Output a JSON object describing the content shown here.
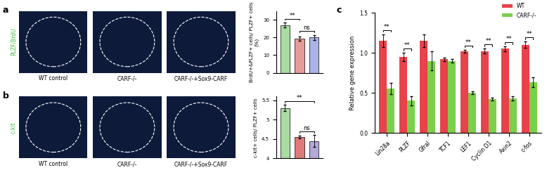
{
  "chart_data": [
    {
      "type": "bar",
      "categories": [
        null,
        null,
        null
      ],
      "values": [
        27,
        19.5,
        20
      ],
      "errors": [
        1.5,
        1.2,
        1.4
      ],
      "colors": [
        "#a8dca0",
        "#e89a9a",
        "#aab4e6"
      ],
      "ylabel": "BrdU+&PLZF+ cells/ PLZF+ cells (%)",
      "ylim": [
        0,
        35
      ],
      "yticks": [
        0,
        10,
        20,
        30
      ],
      "tick_labels": "y",
      "annotations": [
        {
          "text": "**",
          "between": [
            0,
            1
          ]
        },
        {
          "text": "ns",
          "between": [
            1,
            2
          ]
        }
      ]
    },
    {
      "type": "bar",
      "categories": [
        null,
        null,
        null
      ],
      "values": [
        5.3,
        4.55,
        4.45
      ],
      "errors": [
        0.08,
        0.03,
        0.15
      ],
      "colors": [
        "#a8dca0",
        "#e07a7a",
        "#b4a8d8"
      ],
      "ylabel": "c-kit+ cells/ PLZF+ cells",
      "ylim": [
        4,
        5.6
      ],
      "yticks": [
        4,
        4.5,
        5,
        5.5
      ],
      "tick_labels": "y",
      "annotations": [
        {
          "text": "**",
          "between": [
            0,
            2
          ]
        },
        {
          "text": "ns",
          "between": [
            1,
            2
          ]
        }
      ]
    },
    {
      "type": "bar",
      "categories": [
        "Lin28a",
        "PLZF",
        "Gfral",
        "TCF1",
        "LEF1",
        "Cyclin D1",
        "Axin2",
        "c-fos"
      ],
      "series": [
        {
          "name": "WT",
          "color": "#e8424a",
          "values": [
            1.15,
            0.95,
            1.15,
            0.92,
            1.02,
            1.02,
            1.05,
            1.1
          ],
          "errors": [
            0.08,
            0.05,
            0.08,
            0.02,
            0.02,
            0.03,
            0.03,
            0.04
          ]
        },
        {
          "name": "CARF-/-",
          "color": "#7ccf4a",
          "values": [
            0.55,
            0.4,
            0.9,
            0.9,
            0.5,
            0.42,
            0.43,
            0.63
          ],
          "errors": [
            0.07,
            0.06,
            0.12,
            0.02,
            0.02,
            0.02,
            0.03,
            0.06
          ]
        }
      ],
      "ylabel": "Relative gene expression",
      "ylim": [
        0,
        1.5
      ],
      "yticks": [
        {
          "value": 0,
          "label": "0.0"
        },
        {
          "value": 0.5,
          "label": "0.5"
        },
        {
          "value": 1,
          "label": "1.0"
        },
        {
          "value": 1.5,
          "label": "1.5"
        }
      ],
      "legend": "upper right",
      "annotations": [
        {
          "text": "**",
          "category": 0
        },
        {
          "text": "**",
          "category": 1
        },
        {
          "text": "**",
          "category": 4
        },
        {
          "text": "**",
          "category": 5
        },
        {
          "text": "**",
          "category": 6
        },
        {
          "text": "**",
          "category": 7
        }
      ]
    }
  ],
  "images": {
    "rows": [
      {
        "label": "PLZF/BrdU",
        "captions": [
          "WT control",
          "CARF-/-",
          "CARF-/-+Sox9-CARF"
        ]
      },
      {
        "label": "c-kit",
        "captions": [
          "WT control",
          "CARF-/-",
          "CARF-/-+Sox9-CARF"
        ]
      }
    ]
  },
  "panel_labels": [
    "a",
    "b",
    "c"
  ]
}
